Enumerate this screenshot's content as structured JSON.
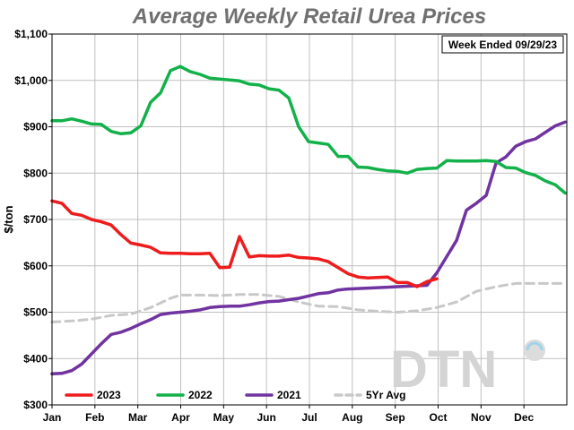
{
  "chart_data": {
    "type": "line",
    "title": "Average Weekly Retail Urea Prices",
    "annotation": "Week Ended 09/29/23",
    "xlabel": "",
    "ylabel": "$/ton",
    "ylim": [
      300,
      1100
    ],
    "yticks": [
      300,
      400,
      500,
      600,
      700,
      800,
      900,
      1000,
      1100
    ],
    "ytick_labels": [
      "$300",
      "$400",
      "$500",
      "$600",
      "$700",
      "$800",
      "$900",
      "$1,000",
      "$1,100"
    ],
    "xlim": [
      0,
      12
    ],
    "xtick_labels": [
      "Jan",
      "Feb",
      "Mar",
      "Apr",
      "May",
      "Jun",
      "Jul",
      "Aug",
      "Sep",
      "Oct",
      "Nov",
      "Dec"
    ],
    "grid": true,
    "legend_position": "bottom-left",
    "logo_text": "DTN",
    "series": [
      {
        "name": "2023",
        "color": "#ee1c1c",
        "dash": "solid",
        "x": [
          0.0,
          0.23,
          0.46,
          0.69,
          0.92,
          1.15,
          1.38,
          1.61,
          1.84,
          2.07,
          2.3,
          2.53,
          2.76,
          2.99,
          3.22,
          3.45,
          3.68,
          3.91,
          4.14,
          4.37,
          4.6,
          4.83,
          5.06,
          5.29,
          5.52,
          5.75,
          5.98,
          6.21,
          6.44,
          6.67,
          6.9,
          7.13,
          7.36,
          7.59,
          7.82,
          8.05,
          8.28,
          8.51,
          8.74,
          8.97
        ],
        "values": [
          740,
          735,
          713,
          709,
          700,
          695,
          688,
          667,
          649,
          645,
          640,
          628,
          627,
          627,
          626,
          626,
          627,
          596,
          597,
          663,
          619,
          622,
          621,
          621,
          623,
          618,
          617,
          615,
          609,
          596,
          583,
          576,
          574,
          575,
          576,
          564,
          564,
          555,
          566,
          572
        ]
      },
      {
        "name": "2022",
        "color": "#12b14a",
        "dash": "solid",
        "x": [
          0.0,
          0.23,
          0.46,
          0.69,
          0.92,
          1.15,
          1.38,
          1.61,
          1.84,
          2.07,
          2.3,
          2.53,
          2.76,
          2.99,
          3.22,
          3.45,
          3.68,
          3.91,
          4.14,
          4.37,
          4.6,
          4.83,
          5.06,
          5.29,
          5.52,
          5.75,
          5.98,
          6.21,
          6.44,
          6.67,
          6.9,
          7.13,
          7.36,
          7.59,
          7.82,
          8.05,
          8.28,
          8.51,
          8.74,
          8.97,
          9.2,
          9.43,
          9.66,
          9.89,
          10.12,
          10.35,
          10.58,
          10.81,
          11.04,
          11.27,
          11.5,
          11.73,
          11.96
        ],
        "values": [
          913,
          913,
          917,
          912,
          906,
          905,
          890,
          885,
          887,
          902,
          953,
          973,
          1021,
          1030,
          1019,
          1013,
          1005,
          1003,
          1001,
          999,
          992,
          990,
          982,
          979,
          962,
          900,
          868,
          865,
          862,
          836,
          836,
          813,
          812,
          808,
          805,
          804,
          800,
          808,
          810,
          811,
          827,
          826,
          826,
          826,
          827,
          825,
          812,
          811,
          801,
          795,
          783,
          775,
          757
        ]
      },
      {
        "name": "2021",
        "color": "#7033a0",
        "dash": "solid",
        "x": [
          0.0,
          0.23,
          0.46,
          0.69,
          0.92,
          1.15,
          1.38,
          1.61,
          1.84,
          2.07,
          2.3,
          2.53,
          2.76,
          2.99,
          3.22,
          3.45,
          3.68,
          3.91,
          4.14,
          4.37,
          4.6,
          4.83,
          5.06,
          5.29,
          5.52,
          5.75,
          5.98,
          6.21,
          6.44,
          6.67,
          6.9,
          7.13,
          7.36,
          7.59,
          7.82,
          8.05,
          8.28,
          8.51,
          8.74,
          8.97,
          9.2,
          9.43,
          9.66,
          9.89,
          10.12,
          10.35,
          10.58,
          10.81,
          11.04,
          11.27,
          11.5,
          11.73,
          11.96
        ],
        "values": [
          367,
          368,
          374,
          388,
          410,
          432,
          452,
          457,
          465,
          475,
          484,
          495,
          498,
          500,
          502,
          505,
          510,
          512,
          513,
          513,
          516,
          520,
          523,
          524,
          527,
          530,
          535,
          540,
          542,
          548,
          550,
          551,
          552,
          553,
          554,
          555,
          556,
          557,
          558,
          585,
          620,
          655,
          720,
          735,
          752,
          822,
          835,
          858,
          868,
          874,
          888,
          902,
          910
        ]
      },
      {
        "name": "5Yr Avg",
        "color": "#c8c8c8",
        "dash": "dashed",
        "x": [
          0.0,
          0.46,
          0.92,
          1.38,
          1.84,
          2.3,
          2.76,
          2.99,
          3.45,
          3.91,
          4.37,
          4.83,
          5.29,
          5.75,
          6.21,
          6.67,
          7.13,
          7.59,
          8.05,
          8.51,
          8.97,
          9.43,
          9.89,
          10.35,
          10.81,
          11.27,
          11.73,
          11.96
        ],
        "values": [
          479,
          481,
          485,
          493,
          496,
          510,
          530,
          537,
          537,
          536,
          538,
          538,
          534,
          522,
          513,
          512,
          505,
          502,
          500,
          503,
          510,
          522,
          545,
          555,
          562,
          562,
          562,
          562
        ]
      }
    ]
  }
}
